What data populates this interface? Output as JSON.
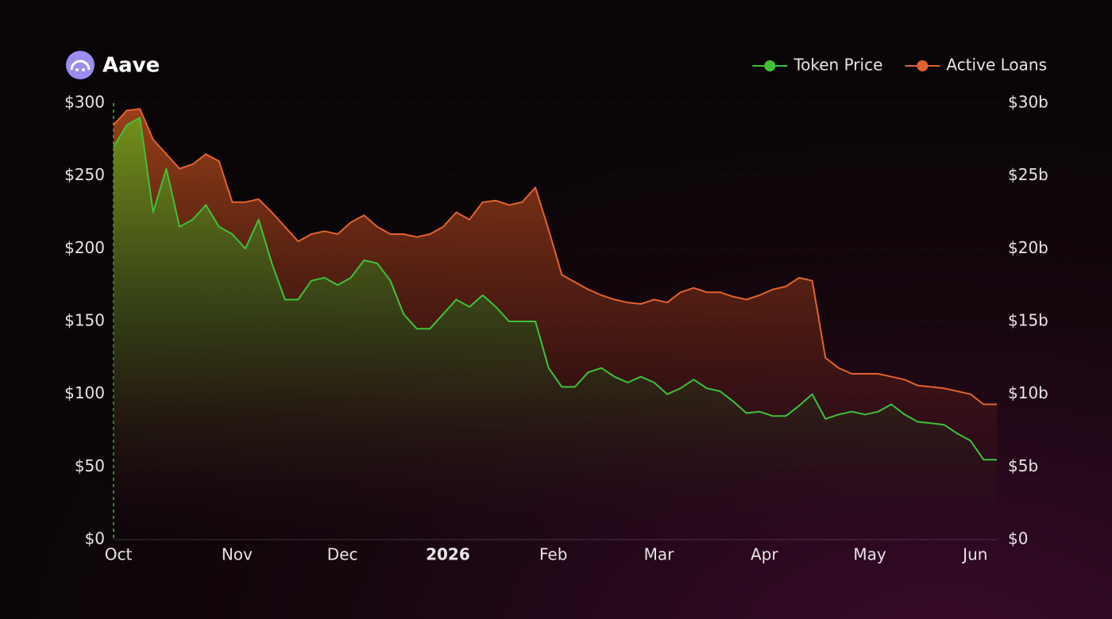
{
  "brand": "Aave",
  "chart_data": {
    "type": "line",
    "categories": [
      "Oct",
      null,
      null,
      null,
      null,
      null,
      null,
      null,
      null,
      "Nov",
      null,
      null,
      null,
      null,
      null,
      null,
      null,
      "Dec",
      null,
      null,
      null,
      null,
      null,
      null,
      null,
      "2026",
      null,
      null,
      null,
      null,
      null,
      null,
      null,
      "Feb",
      null,
      null,
      null,
      null,
      null,
      null,
      null,
      "Mar",
      null,
      null,
      null,
      null,
      null,
      null,
      null,
      "Apr",
      null,
      null,
      null,
      null,
      null,
      null,
      null,
      "May",
      null,
      null,
      null,
      null,
      null,
      null,
      null,
      "Jun",
      null,
      null
    ],
    "series": [
      {
        "name": "Token Price",
        "color": "#3fc23a",
        "axis": "y",
        "values": [
          270,
          285,
          290,
          225,
          255,
          215,
          220,
          230,
          215,
          210,
          200,
          220,
          190,
          165,
          165,
          178,
          180,
          175,
          180,
          192,
          190,
          178,
          155,
          145,
          145,
          155,
          165,
          160,
          168,
          160,
          150,
          150,
          150,
          118,
          105,
          105,
          115,
          118,
          112,
          108,
          112,
          108,
          100,
          104,
          110,
          104,
          102,
          95,
          87,
          88,
          85,
          85,
          92,
          100,
          83,
          86,
          88,
          86,
          88,
          93,
          86,
          81,
          80,
          79,
          73,
          68,
          55,
          55
        ]
      },
      {
        "name": "Active Loans",
        "color": "#e2622f",
        "axis": "y2",
        "values": [
          28.5,
          29.5,
          29.6,
          27.5,
          26.5,
          25.5,
          25.8,
          26.5,
          26,
          23.2,
          23.2,
          23.4,
          22.5,
          21.5,
          20.5,
          21,
          21.2,
          21,
          21.8,
          22.3,
          21.5,
          21,
          21,
          20.8,
          21,
          21.5,
          22.5,
          22,
          23.2,
          23.3,
          23,
          23.2,
          24.2,
          21.3,
          18.2,
          17.7,
          17.2,
          16.8,
          16.5,
          16.3,
          16.2,
          16.5,
          16.3,
          17,
          17.3,
          17,
          17,
          16.7,
          16.5,
          16.8,
          17.2,
          17.4,
          18,
          17.8,
          12.5,
          11.8,
          11.4,
          11.4,
          11.4,
          11.2,
          11,
          10.6,
          10.5,
          10.4,
          10.2,
          10,
          9.3,
          9.3
        ]
      }
    ],
    "ylim": [
      0,
      300
    ],
    "yticks": [
      {
        "value": 0,
        "label": "$0"
      },
      {
        "value": 50,
        "label": "$50"
      },
      {
        "value": 100,
        "label": "$100"
      },
      {
        "value": 150,
        "label": "$150"
      },
      {
        "value": 200,
        "label": "$200"
      },
      {
        "value": 250,
        "label": "$250"
      },
      {
        "value": 300,
        "label": "$300"
      }
    ],
    "y2lim": [
      0,
      30
    ],
    "y2ticks": [
      {
        "value": 0,
        "label": "$0"
      },
      {
        "value": 5,
        "label": "$5b"
      },
      {
        "value": 10,
        "label": "$10b"
      },
      {
        "value": 15,
        "label": "$15b"
      },
      {
        "value": 20,
        "label": "$20b"
      },
      {
        "value": 25,
        "label": "$25b"
      },
      {
        "value": 30,
        "label": "$30b"
      }
    ],
    "grid": true,
    "legend": "top-right"
  }
}
